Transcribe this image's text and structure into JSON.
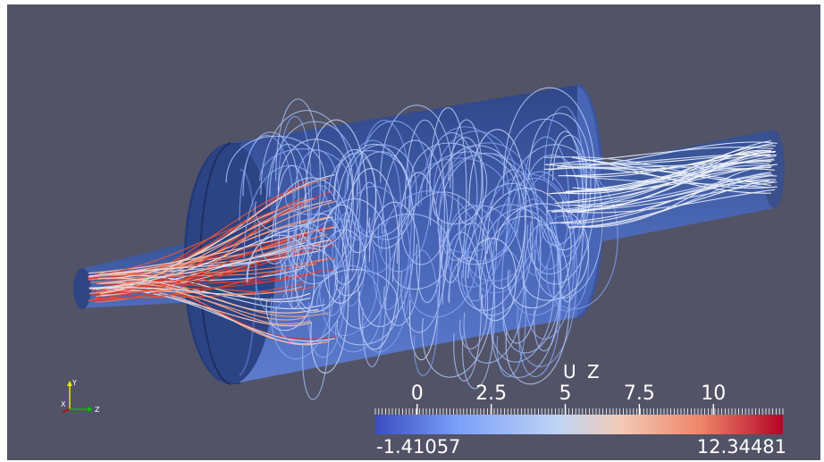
{
  "colorbar": {
    "title": "U Z",
    "ticks": [
      "0",
      "2.5",
      "5",
      "7.5",
      "10"
    ],
    "tick_values": [
      0,
      2.5,
      5,
      7.5,
      10
    ],
    "range": [
      -1.41057,
      12.34481
    ],
    "min_label": "-1.41057",
    "max_label": "12.34481",
    "colormap": [
      "#3b4cc0",
      "#7b9ff9",
      "#c0d4f5",
      "#f2cbb7",
      "#ee8468",
      "#b40426"
    ]
  },
  "axes": {
    "y_label": "Y",
    "x_label": "X",
    "z_label": "Z"
  },
  "colors": {
    "background": "#525366",
    "geometry": "#3e58a0",
    "geometry_dark": "#2c3f7e"
  }
}
